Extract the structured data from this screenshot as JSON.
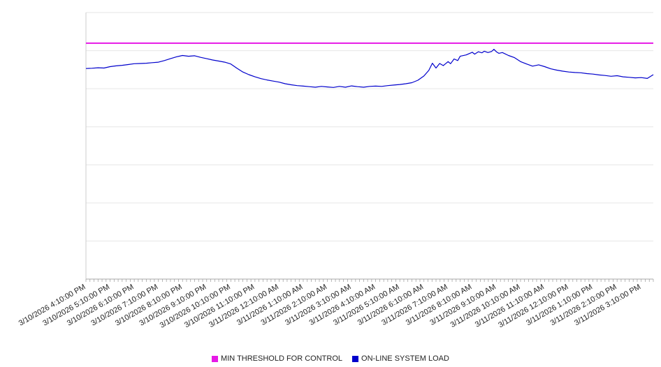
{
  "chart_data": {
    "type": "line",
    "title": "",
    "xlabel": "",
    "ylabel": "",
    "ylim": [
      0,
      100
    ],
    "x_domain_hours": [
      0,
      23.5
    ],
    "grid": true,
    "legend_position": "bottom",
    "x_tick_labels": [
      "3/10/2026 4:10:00 PM",
      "3/10/2026 5:10:00 PM",
      "3/10/2026 6:10:00 PM",
      "3/10/2026 7:10:00 PM",
      "3/10/2026 8:10:00 PM",
      "3/10/2026 9:10:00 PM",
      "3/10/2026 10:10:00 PM",
      "3/10/2026 11:10:00 PM",
      "3/11/2026 12:10:00 AM",
      "3/11/2026 1:10:00 AM",
      "3/11/2026 2:10:00 AM",
      "3/11/2026 3:10:00 AM",
      "3/11/2026 4:10:00 AM",
      "3/11/2026 5:10:00 AM",
      "3/11/2026 6:10:00 AM",
      "3/11/2026 7:10:00 AM",
      "3/11/2026 8:10:00 AM",
      "3/11/2026 9:10:00 AM",
      "3/11/2026 10:10:00 AM",
      "3/11/2026 11:10:00 AM",
      "3/11/2026 12:10:00 PM",
      "3/11/2026 1:10:00 PM",
      "3/11/2026 2:10:00 PM",
      "3/11/2026 3:10:00 PM"
    ],
    "series": [
      {
        "name": "MIN THRESHOLD FOR CONTROL",
        "color": "#e619e6",
        "stroke_width": 2,
        "points": [
          [
            0,
            88.5
          ],
          [
            23.5,
            88.5
          ]
        ]
      },
      {
        "name": "ON-LINE SYSTEM LOAD",
        "color": "#0000cc",
        "stroke_width": 1.2,
        "points": [
          [
            0,
            79.0
          ],
          [
            0.25,
            79.1
          ],
          [
            0.5,
            79.3
          ],
          [
            0.75,
            79.2
          ],
          [
            1,
            79.7
          ],
          [
            1.25,
            80.0
          ],
          [
            1.5,
            80.2
          ],
          [
            1.75,
            80.5
          ],
          [
            2,
            80.8
          ],
          [
            2.25,
            80.9
          ],
          [
            2.5,
            81.0
          ],
          [
            2.75,
            81.2
          ],
          [
            3,
            81.4
          ],
          [
            3.25,
            82.0
          ],
          [
            3.5,
            82.7
          ],
          [
            3.75,
            83.4
          ],
          [
            4,
            83.9
          ],
          [
            4.25,
            83.6
          ],
          [
            4.5,
            83.8
          ],
          [
            4.75,
            83.2
          ],
          [
            5,
            82.7
          ],
          [
            5.25,
            82.2
          ],
          [
            5.5,
            81.8
          ],
          [
            5.75,
            81.4
          ],
          [
            6,
            80.7
          ],
          [
            6.25,
            79.1
          ],
          [
            6.5,
            77.7
          ],
          [
            6.75,
            76.7
          ],
          [
            7,
            75.9
          ],
          [
            7.25,
            75.2
          ],
          [
            7.5,
            74.7
          ],
          [
            7.75,
            74.3
          ],
          [
            8,
            73.9
          ],
          [
            8.25,
            73.3
          ],
          [
            8.5,
            72.9
          ],
          [
            8.75,
            72.6
          ],
          [
            9,
            72.4
          ],
          [
            9.25,
            72.2
          ],
          [
            9.5,
            72.0
          ],
          [
            9.75,
            72.3
          ],
          [
            10,
            72.1
          ],
          [
            10.25,
            71.9
          ],
          [
            10.5,
            72.3
          ],
          [
            10.75,
            72.0
          ],
          [
            11,
            72.5
          ],
          [
            11.25,
            72.2
          ],
          [
            11.5,
            72.0
          ],
          [
            11.75,
            72.3
          ],
          [
            12,
            72.4
          ],
          [
            12.25,
            72.3
          ],
          [
            12.5,
            72.6
          ],
          [
            12.75,
            72.8
          ],
          [
            13,
            73.0
          ],
          [
            13.25,
            73.3
          ],
          [
            13.5,
            73.7
          ],
          [
            13.75,
            74.6
          ],
          [
            14,
            76.2
          ],
          [
            14.2,
            78.3
          ],
          [
            14.35,
            81.0
          ],
          [
            14.5,
            79.2
          ],
          [
            14.65,
            80.9
          ],
          [
            14.8,
            80.1
          ],
          [
            15,
            81.6
          ],
          [
            15.1,
            80.8
          ],
          [
            15.25,
            82.6
          ],
          [
            15.4,
            82.0
          ],
          [
            15.5,
            83.6
          ],
          [
            15.75,
            84.1
          ],
          [
            16,
            85.1
          ],
          [
            16.1,
            84.4
          ],
          [
            16.25,
            85.3
          ],
          [
            16.4,
            84.9
          ],
          [
            16.5,
            85.5
          ],
          [
            16.65,
            85.0
          ],
          [
            16.8,
            85.4
          ],
          [
            16.9,
            86.2
          ],
          [
            17,
            85.3
          ],
          [
            17.1,
            84.7
          ],
          [
            17.25,
            85.0
          ],
          [
            17.5,
            83.9
          ],
          [
            17.75,
            83.1
          ],
          [
            18,
            81.6
          ],
          [
            18.25,
            80.7
          ],
          [
            18.5,
            79.9
          ],
          [
            18.75,
            80.4
          ],
          [
            19,
            79.7
          ],
          [
            19.25,
            78.9
          ],
          [
            19.5,
            78.4
          ],
          [
            19.75,
            78.0
          ],
          [
            20,
            77.7
          ],
          [
            20.25,
            77.5
          ],
          [
            20.5,
            77.4
          ],
          [
            20.75,
            77.1
          ],
          [
            21,
            76.9
          ],
          [
            21.25,
            76.6
          ],
          [
            21.5,
            76.4
          ],
          [
            21.75,
            76.1
          ],
          [
            22,
            76.3
          ],
          [
            22.25,
            75.9
          ],
          [
            22.5,
            75.7
          ],
          [
            22.75,
            75.5
          ],
          [
            23,
            75.6
          ],
          [
            23.25,
            75.3
          ],
          [
            23.5,
            76.7
          ]
        ]
      }
    ]
  }
}
